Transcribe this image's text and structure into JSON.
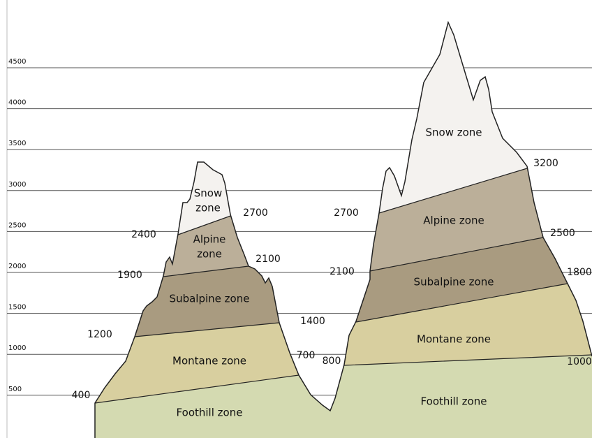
{
  "axis_ticks": [
    "4500",
    "4000",
    "3500",
    "3000",
    "2500",
    "2000",
    "1500",
    "1000",
    "500"
  ],
  "left_mountain": {
    "zones": [
      [
        "Snow",
        "zone"
      ],
      [
        "Alpine",
        "zone"
      ],
      [
        "Subalpine zone"
      ],
      [
        "Montane zone"
      ],
      [
        "Foothill zone"
      ]
    ]
  },
  "right_mountain": {
    "zones": [
      [
        "Snow zone"
      ],
      [
        "Alpine zone"
      ],
      [
        "Subalpine zone"
      ],
      [
        "Montane zone"
      ],
      [
        "Foothill zone"
      ]
    ]
  },
  "elevations": [
    "400",
    "1200",
    "1900",
    "2400",
    "2700",
    "2100",
    "1400",
    "700",
    "800",
    "2100",
    "2700",
    "3200",
    "2500",
    "1800",
    "1000"
  ]
}
